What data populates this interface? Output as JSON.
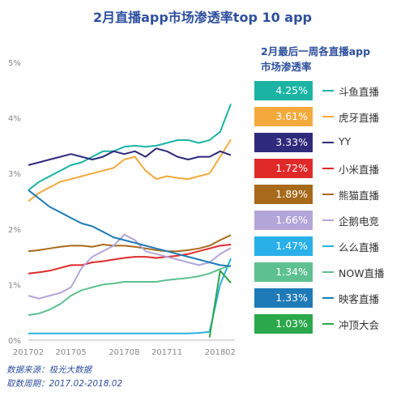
{
  "title": "2月直播app市场渗透率top 10 app",
  "legend_title_1": "2月最后一周各直播app",
  "legend_title_2": "市场渗透率",
  "footnote_source": "数据来源：极光大数据",
  "footnote_period": "取数周期：2017.02-2018.02",
  "chart_data": {
    "type": "line",
    "title": "2月直播app市场渗透率top 10 app",
    "x_tick_labels": [
      "201702",
      "201705",
      "201708",
      "201711",
      "201802"
    ],
    "y_tick_labels": [
      "0%",
      "1%",
      "2%",
      "3%",
      "4%",
      "5%"
    ],
    "ylim": [
      0,
      5
    ],
    "grid": false,
    "legend_position": "right",
    "series": [
      {
        "name": "斗鱼直播",
        "latest": "4.25%",
        "color": "#1bb4a4",
        "values": [
          2.7,
          2.85,
          2.95,
          3.05,
          3.15,
          3.2,
          3.3,
          3.4,
          3.4,
          3.48,
          3.5,
          3.48,
          3.5,
          3.55,
          3.6,
          3.6,
          3.55,
          3.6,
          3.75,
          4.25
        ]
      },
      {
        "name": "虎牙直播",
        "latest": "3.61%",
        "color": "#f4a93c",
        "values": [
          2.5,
          2.65,
          2.75,
          2.85,
          2.9,
          2.95,
          3.0,
          3.05,
          3.1,
          3.25,
          3.3,
          3.05,
          2.9,
          2.95,
          2.92,
          2.9,
          2.95,
          3.0,
          3.3,
          3.61
        ]
      },
      {
        "name": "YY",
        "latest": "3.33%",
        "color": "#2e2a7c",
        "values": [
          3.15,
          3.2,
          3.25,
          3.3,
          3.35,
          3.3,
          3.25,
          3.3,
          3.4,
          3.35,
          3.4,
          3.3,
          3.45,
          3.4,
          3.3,
          3.25,
          3.3,
          3.3,
          3.4,
          3.33
        ]
      },
      {
        "name": "小米直播",
        "latest": "1.72%",
        "color": "#e02a2a",
        "values": [
          1.2,
          1.22,
          1.25,
          1.3,
          1.35,
          1.35,
          1.4,
          1.42,
          1.45,
          1.48,
          1.5,
          1.5,
          1.48,
          1.5,
          1.52,
          1.55,
          1.6,
          1.65,
          1.7,
          1.72
        ]
      },
      {
        "name": "熊猫直播",
        "latest": "1.89%",
        "color": "#a66a1a",
        "values": [
          1.6,
          1.62,
          1.65,
          1.68,
          1.7,
          1.7,
          1.68,
          1.72,
          1.7,
          1.7,
          1.68,
          1.65,
          1.62,
          1.6,
          1.6,
          1.62,
          1.65,
          1.7,
          1.8,
          1.89
        ]
      },
      {
        "name": "企鹅电竞",
        "latest": "1.66%",
        "color": "#b3a5d8",
        "values": [
          0.8,
          0.75,
          0.8,
          0.85,
          0.95,
          1.3,
          1.5,
          1.6,
          1.7,
          1.9,
          1.8,
          1.6,
          1.55,
          1.5,
          1.45,
          1.4,
          1.35,
          1.4,
          1.55,
          1.66
        ]
      },
      {
        "name": "么么直播",
        "latest": "1.47%",
        "color": "#29b0e8",
        "values": [
          0.12,
          0.12,
          0.12,
          0.12,
          0.12,
          0.12,
          0.12,
          0.12,
          0.12,
          0.12,
          0.12,
          0.12,
          0.12,
          0.12,
          0.12,
          0.12,
          0.13,
          0.15,
          1.0,
          1.47
        ]
      },
      {
        "name": "NOW直播",
        "latest": "1.34%",
        "color": "#5cc090",
        "values": [
          0.45,
          0.48,
          0.55,
          0.65,
          0.8,
          0.9,
          0.95,
          1.0,
          1.02,
          1.05,
          1.05,
          1.05,
          1.05,
          1.08,
          1.1,
          1.12,
          1.15,
          1.2,
          1.28,
          1.34
        ]
      },
      {
        "name": "映客直播",
        "latest": "1.33%",
        "color": "#1e7bb8",
        "values": [
          2.7,
          2.55,
          2.4,
          2.3,
          2.2,
          2.1,
          2.05,
          1.95,
          1.85,
          1.8,
          1.75,
          1.7,
          1.65,
          1.6,
          1.55,
          1.5,
          1.45,
          1.4,
          1.35,
          1.33
        ]
      },
      {
        "name": "冲顶大会",
        "latest": "1.03%",
        "color": "#2aa84a",
        "values": [
          null,
          null,
          null,
          null,
          null,
          null,
          null,
          null,
          null,
          null,
          null,
          null,
          null,
          null,
          null,
          null,
          null,
          0.05,
          1.25,
          1.03
        ]
      }
    ]
  }
}
